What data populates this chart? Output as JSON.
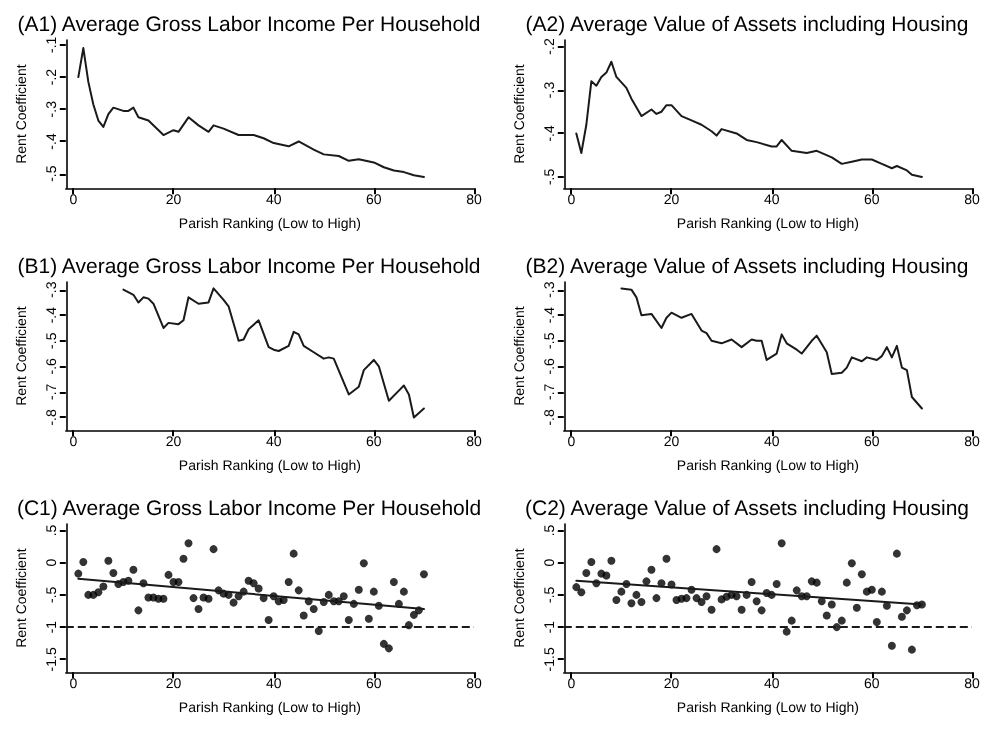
{
  "chart_data": [
    {
      "type": "line",
      "title": "(A1) Average Gross Labor Income Per Household",
      "xlabel": "Parish Ranking (Low to High)",
      "ylabel": "Rent Coefficient",
      "marker": "none",
      "line_style": "solid",
      "xlim": [
        -1.5,
        80
      ],
      "xticks": [
        0,
        20,
        40,
        60,
        80
      ],
      "ylim": [
        -0.545,
        -0.085
      ],
      "yticks": [
        {
          "value": -0.5,
          "label": "-.5"
        },
        {
          "value": -0.4,
          "label": "-.4"
        },
        {
          "value": -0.3,
          "label": "-.3"
        },
        {
          "value": -0.2,
          "label": "-.2"
        },
        {
          "value": -0.1,
          "label": "-.1"
        }
      ],
      "series": [
        {
          "color": "#1a1a1a",
          "x": [
            1,
            2,
            3,
            4,
            5,
            6,
            7,
            8,
            10,
            11,
            12,
            13,
            15,
            18,
            20,
            21,
            23,
            25,
            27,
            28,
            30,
            33,
            36,
            38,
            40,
            43,
            45,
            48,
            50,
            53,
            55,
            57,
            60,
            62,
            64,
            66,
            68,
            70
          ],
          "values": [
            -0.2,
            -0.11,
            -0.215,
            -0.285,
            -0.335,
            -0.355,
            -0.315,
            -0.295,
            -0.305,
            -0.305,
            -0.295,
            -0.325,
            -0.335,
            -0.38,
            -0.365,
            -0.37,
            -0.325,
            -0.35,
            -0.37,
            -0.35,
            -0.36,
            -0.38,
            -0.38,
            -0.39,
            -0.405,
            -0.415,
            -0.4,
            -0.425,
            -0.44,
            -0.445,
            -0.46,
            -0.455,
            -0.465,
            -0.48,
            -0.49,
            -0.495,
            -0.505,
            -0.51
          ]
        }
      ]
    },
    {
      "type": "line",
      "title": "(A2) Average Value of Assets including Housing",
      "xlabel": "Parish Ranking (Low to High)",
      "ylabel": "Rent Coefficient",
      "marker": "none",
      "line_style": "solid",
      "xlim": [
        -1.5,
        80
      ],
      "xticks": [
        0,
        20,
        40,
        60,
        80
      ],
      "ylim": [
        -0.526,
        -0.185
      ],
      "yticks": [
        {
          "value": -0.5,
          "label": "-.5"
        },
        {
          "value": -0.4,
          "label": "-.4"
        },
        {
          "value": -0.3,
          "label": "-.3"
        },
        {
          "value": -0.2,
          "label": "-.2"
        }
      ],
      "series": [
        {
          "color": "#1a1a1a",
          "x": [
            1,
            2,
            3,
            4,
            5,
            6,
            7,
            8,
            9,
            11,
            12,
            14,
            16,
            17,
            18,
            19,
            20,
            22,
            24,
            26,
            28,
            29,
            30,
            33,
            35,
            37,
            40,
            41,
            42,
            44,
            47,
            49,
            52,
            54,
            56,
            58,
            60,
            62,
            64,
            65,
            67,
            68,
            70
          ],
          "values": [
            -0.4,
            -0.445,
            -0.38,
            -0.28,
            -0.29,
            -0.27,
            -0.26,
            -0.235,
            -0.27,
            -0.295,
            -0.32,
            -0.36,
            -0.345,
            -0.355,
            -0.35,
            -0.335,
            -0.335,
            -0.36,
            -0.37,
            -0.38,
            -0.395,
            -0.405,
            -0.39,
            -0.4,
            -0.415,
            -0.42,
            -0.43,
            -0.43,
            -0.415,
            -0.44,
            -0.445,
            -0.44,
            -0.455,
            -0.47,
            -0.465,
            -0.46,
            -0.46,
            -0.47,
            -0.48,
            -0.475,
            -0.485,
            -0.495,
            -0.5
          ]
        }
      ]
    },
    {
      "type": "line",
      "title": "(B1) Average Gross Labor Income Per Household",
      "xlabel": "Parish Ranking (Low to High)",
      "ylabel": "Rent Coefficient",
      "marker": "none",
      "line_style": "solid",
      "xlim": [
        -1.5,
        80
      ],
      "xticks": [
        0,
        20,
        40,
        60,
        80
      ],
      "ylim": [
        -0.85,
        -0.27
      ],
      "yticks": [
        {
          "value": -0.8,
          "label": "-.8"
        },
        {
          "value": -0.7,
          "label": "-.7"
        },
        {
          "value": -0.6,
          "label": "-.6"
        },
        {
          "value": -0.5,
          "label": "-.5"
        },
        {
          "value": -0.4,
          "label": "-.4"
        },
        {
          "value": -0.3,
          "label": "-.3"
        }
      ],
      "series": [
        {
          "color": "#1a1a1a",
          "x": [
            10,
            12,
            13,
            14,
            15,
            16,
            18,
            19,
            21,
            22,
            23,
            25,
            27,
            28,
            30,
            31,
            33,
            34,
            35,
            37,
            39,
            40,
            41,
            43,
            44,
            45,
            46,
            48,
            50,
            51,
            52,
            55,
            57,
            58,
            60,
            61,
            63,
            65,
            66,
            67,
            68,
            70
          ],
          "values": [
            -0.3,
            -0.32,
            -0.35,
            -0.33,
            -0.335,
            -0.355,
            -0.45,
            -0.43,
            -0.435,
            -0.42,
            -0.33,
            -0.355,
            -0.35,
            -0.295,
            -0.34,
            -0.365,
            -0.5,
            -0.495,
            -0.455,
            -0.42,
            -0.525,
            -0.535,
            -0.54,
            -0.52,
            -0.465,
            -0.475,
            -0.52,
            -0.545,
            -0.57,
            -0.565,
            -0.57,
            -0.71,
            -0.68,
            -0.615,
            -0.575,
            -0.6,
            -0.735,
            -0.695,
            -0.675,
            -0.71,
            -0.8,
            -0.765
          ]
        }
      ]
    },
    {
      "type": "line",
      "title": "(B2) Average Value of Assets including Housing",
      "xlabel": "Parish Ranking (Low to High)",
      "ylabel": "Rent Coefficient",
      "marker": "none",
      "line_style": "solid",
      "xlim": [
        -1.5,
        80
      ],
      "xticks": [
        0,
        20,
        40,
        60,
        80
      ],
      "ylim": [
        -0.85,
        -0.27
      ],
      "yticks": [
        {
          "value": -0.8,
          "label": "-.8"
        },
        {
          "value": -0.7,
          "label": "-.7"
        },
        {
          "value": -0.6,
          "label": "-.6"
        },
        {
          "value": -0.5,
          "label": "-.5"
        },
        {
          "value": -0.4,
          "label": "-.4"
        },
        {
          "value": -0.3,
          "label": "-.3"
        }
      ],
      "series": [
        {
          "color": "#1a1a1a",
          "x": [
            10,
            12,
            13,
            14,
            16,
            18,
            19,
            20,
            22,
            24,
            26,
            27,
            28,
            30,
            32,
            34,
            36,
            37,
            38,
            39,
            41,
            42,
            43,
            45,
            46,
            48,
            49,
            51,
            52,
            54,
            55,
            56,
            58,
            59,
            61,
            62,
            63,
            64,
            65,
            66,
            67,
            68,
            70
          ],
          "values": [
            -0.295,
            -0.3,
            -0.33,
            -0.4,
            -0.395,
            -0.45,
            -0.41,
            -0.39,
            -0.41,
            -0.395,
            -0.46,
            -0.47,
            -0.5,
            -0.51,
            -0.495,
            -0.525,
            -0.495,
            -0.5,
            -0.5,
            -0.575,
            -0.55,
            -0.475,
            -0.51,
            -0.535,
            -0.55,
            -0.5,
            -0.48,
            -0.545,
            -0.63,
            -0.625,
            -0.605,
            -0.565,
            -0.58,
            -0.565,
            -0.575,
            -0.56,
            -0.525,
            -0.565,
            -0.52,
            -0.605,
            -0.615,
            -0.72,
            -0.765
          ]
        }
      ]
    },
    {
      "type": "scatter",
      "title": "(C1) Average Gross Labor Income Per Household",
      "xlabel": "Parish Ranking (Low to High)",
      "ylabel": "Rent Coefficient",
      "marker": "circle",
      "xlim": [
        -1.5,
        80
      ],
      "xticks": [
        0,
        20,
        40,
        60,
        80
      ],
      "ylim": [
        -1.7,
        0.6
      ],
      "yticks": [
        {
          "value": -1.5,
          "label": "-1.5"
        },
        {
          "value": -1,
          "label": "-1"
        },
        {
          "value": -0.5,
          "label": "-.5"
        },
        0,
        {
          "value": 0.5,
          "label": ".5"
        }
      ],
      "ref_lines": [
        {
          "axis": "y",
          "value": -1,
          "color": "#1a1a1a",
          "line_style": "dashed"
        }
      ],
      "series": [
        {
          "color": "#000000",
          "x": [
            1,
            2,
            3,
            4,
            5,
            6,
            7,
            8,
            9,
            10,
            11,
            12,
            13,
            14,
            15,
            16,
            17,
            18,
            19,
            20,
            21,
            22,
            23,
            24,
            25,
            26,
            27,
            28,
            29,
            30,
            31,
            32,
            33,
            34,
            35,
            36,
            37,
            38,
            39,
            40,
            41,
            42,
            43,
            44,
            45,
            46,
            47,
            48,
            49,
            50,
            51,
            52,
            53,
            54,
            55,
            56,
            57,
            58,
            59,
            60,
            61,
            62,
            63,
            64,
            65,
            66,
            67,
            68,
            69,
            70
          ],
          "values": [
            -0.17,
            0.01,
            -0.5,
            -0.5,
            -0.46,
            -0.37,
            0.03,
            -0.16,
            -0.33,
            -0.3,
            -0.28,
            -0.11,
            -0.74,
            -0.32,
            -0.54,
            -0.54,
            -0.56,
            -0.56,
            -0.19,
            -0.3,
            -0.3,
            0.06,
            0.3,
            -0.55,
            -0.72,
            -0.54,
            -0.56,
            0.21,
            -0.43,
            -0.48,
            -0.5,
            -0.62,
            -0.52,
            -0.45,
            -0.28,
            -0.32,
            -0.4,
            -0.55,
            -0.89,
            -0.52,
            -0.6,
            -0.58,
            -0.3,
            0.14,
            -0.43,
            -0.82,
            -0.6,
            -0.72,
            -1.06,
            -0.61,
            -0.5,
            -0.6,
            -0.6,
            -0.52,
            -0.89,
            -0.64,
            -0.42,
            -0.01,
            -0.87,
            -0.45,
            -0.67,
            -1.26,
            -1.33,
            -0.3,
            -0.64,
            -0.45,
            -0.97,
            -0.81,
            -0.74,
            -0.18
          ]
        },
        {
          "type": "line",
          "marker": "none",
          "color": "#1a1a1a",
          "x": [
            1,
            70
          ],
          "values": [
            -0.25,
            -0.72
          ]
        }
      ]
    },
    {
      "type": "scatter",
      "title": "(C2) Average Value of Assets including Housing",
      "xlabel": "Parish Ranking (Low to High)",
      "ylabel": "Rent Coefficient",
      "marker": "circle",
      "xlim": [
        -1.5,
        80
      ],
      "xticks": [
        0,
        20,
        40,
        60,
        80
      ],
      "ylim": [
        -1.7,
        0.6
      ],
      "yticks": [
        {
          "value": -1.5,
          "label": "-1.5"
        },
        {
          "value": -1,
          "label": "-1"
        },
        {
          "value": -0.5,
          "label": "-.5"
        },
        0,
        {
          "value": 0.5,
          "label": ".5"
        }
      ],
      "ref_lines": [
        {
          "axis": "y",
          "value": -1,
          "color": "#1a1a1a",
          "line_style": "dashed"
        }
      ],
      "series": [
        {
          "color": "#000000",
          "x": [
            1,
            2,
            3,
            4,
            5,
            6,
            7,
            8,
            9,
            10,
            11,
            12,
            13,
            14,
            15,
            16,
            17,
            18,
            19,
            20,
            21,
            22,
            23,
            24,
            25,
            26,
            27,
            28,
            29,
            30,
            31,
            32,
            33,
            34,
            35,
            36,
            37,
            38,
            39,
            40,
            41,
            42,
            43,
            44,
            45,
            46,
            47,
            48,
            49,
            50,
            51,
            52,
            53,
            54,
            55,
            56,
            57,
            58,
            59,
            60,
            61,
            62,
            63,
            64,
            65,
            66,
            67,
            68,
            69,
            70
          ],
          "values": [
            -0.38,
            -0.46,
            -0.16,
            0.01,
            -0.32,
            -0.17,
            -0.2,
            0.03,
            -0.58,
            -0.45,
            -0.33,
            -0.63,
            -0.5,
            -0.61,
            -0.29,
            -0.11,
            -0.55,
            -0.32,
            0.06,
            -0.34,
            -0.58,
            -0.56,
            -0.55,
            -0.42,
            -0.55,
            -0.61,
            -0.52,
            -0.73,
            0.21,
            -0.57,
            -0.53,
            -0.5,
            -0.52,
            -0.73,
            -0.5,
            -0.3,
            -0.6,
            -0.74,
            -0.47,
            -0.5,
            -0.33,
            0.3,
            -1.07,
            -0.9,
            -0.43,
            -0.52,
            -0.52,
            -0.29,
            -0.31,
            -0.6,
            -0.82,
            -0.65,
            -1.0,
            -0.9,
            -0.31,
            -0.01,
            -0.7,
            -0.18,
            -0.45,
            -0.42,
            -0.92,
            -0.45,
            -0.67,
            -1.29,
            0.14,
            -0.84,
            -0.74,
            -1.35,
            -0.66,
            -0.65
          ]
        },
        {
          "type": "line",
          "marker": "none",
          "color": "#1a1a1a",
          "x": [
            1,
            70
          ],
          "values": [
            -0.28,
            -0.65
          ]
        }
      ]
    }
  ]
}
